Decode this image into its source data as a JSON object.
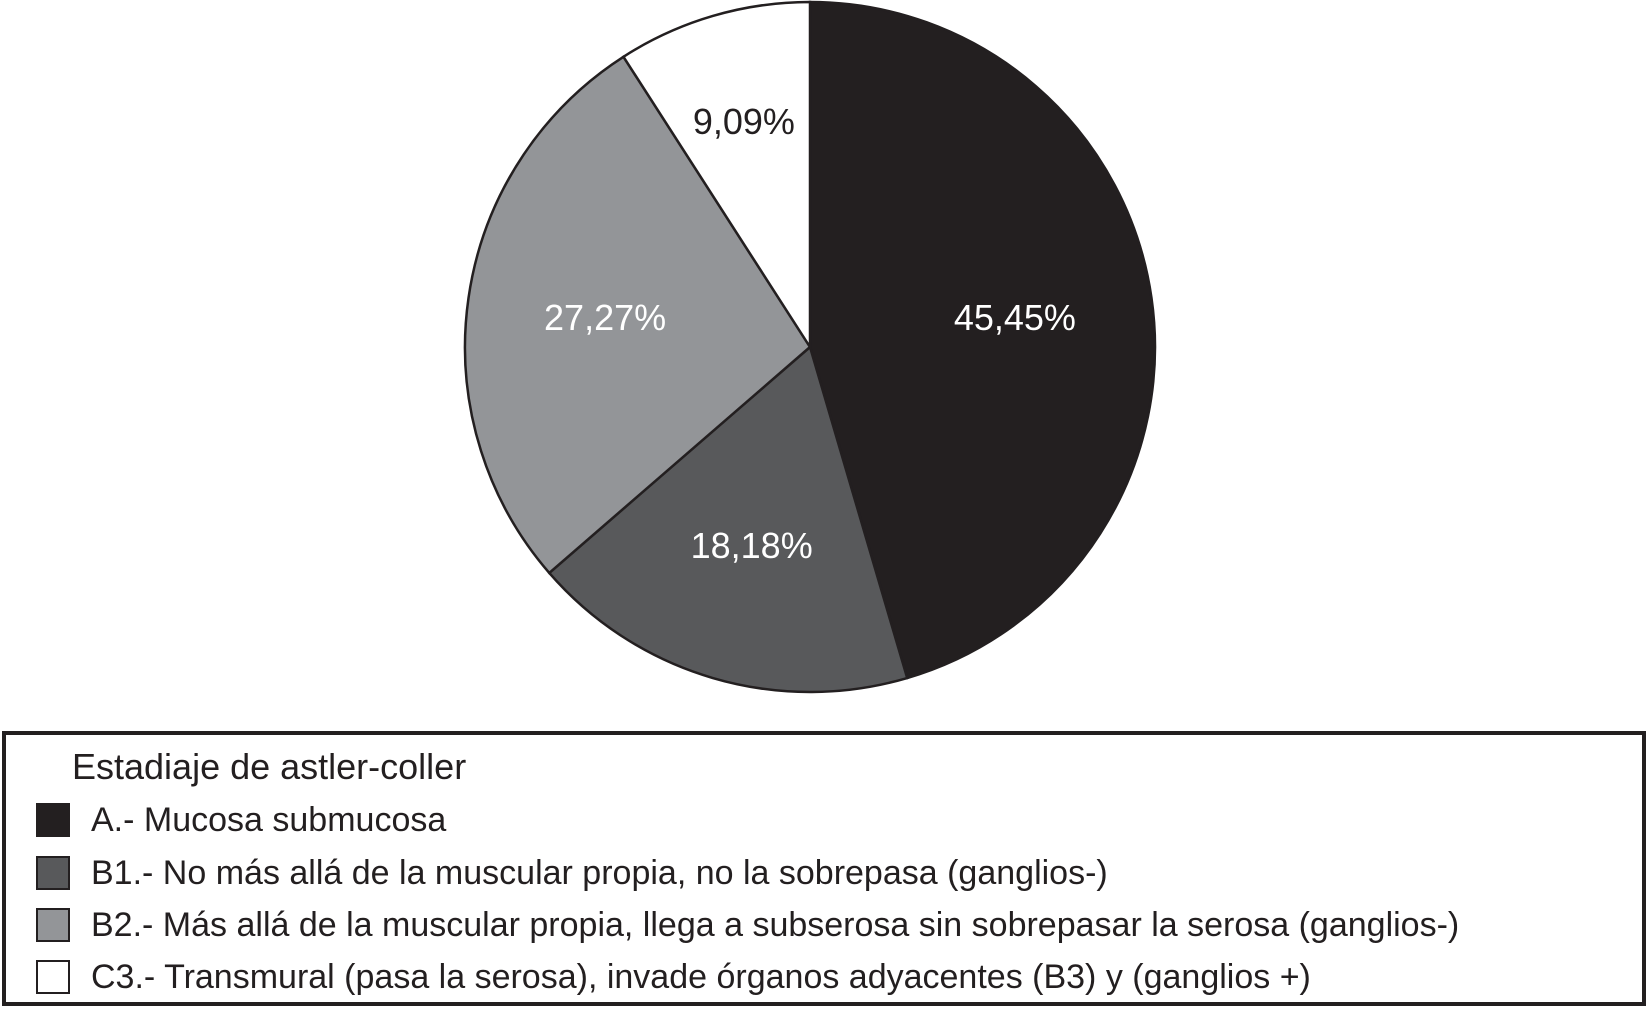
{
  "chart_data": {
    "type": "pie",
    "title": "",
    "legend_title": "Estadiaje de astler-coller",
    "legend_position": "bottom",
    "start_angle_deg": 0,
    "direction": "clockwise",
    "categories": [
      "A.- Mucosa submucosa",
      "B1.- No más allá de la muscular propia, no la sobrepasa (ganglios-)",
      "B2.- Más allá de la muscular propia, llega a subserosa sin sobrepasar la serosa (ganglios-)",
      "C3.- Transmural (pasa la serosa), invade órganos adyacentes (B3) y (ganglios +)"
    ],
    "values": [
      45.45,
      18.18,
      27.27,
      9.09
    ],
    "labels": [
      "45,45%",
      "18,18%",
      "27,27%",
      "9,09%"
    ],
    "colors": [
      "#231f20",
      "#58595b",
      "#939598",
      "#ffffff"
    ],
    "label_colors": [
      "#ffffff",
      "#ffffff",
      "#ffffff",
      "#231f20"
    ]
  },
  "legend": {
    "title": "Estadiaje de astler-coller",
    "items": [
      {
        "label": "A.- Mucosa submucosa",
        "color": "#231f20"
      },
      {
        "label": "B1.- No más allá de la muscular propia, no la sobrepasa (ganglios-)",
        "color": "#58595b"
      },
      {
        "label": "B2.- Más allá de la muscular propia, llega a subserosa sin sobrepasar la serosa (ganglios-)",
        "color": "#939598"
      },
      {
        "label": "C3.- Transmural (pasa la serosa), invade órganos adyacentes (B3) y (ganglios +)",
        "color": "#ffffff"
      }
    ]
  }
}
